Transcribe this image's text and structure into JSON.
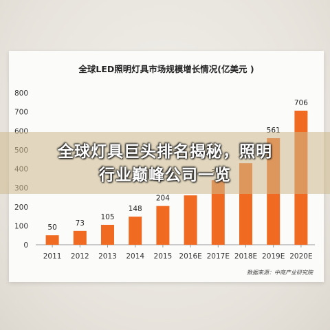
{
  "headline": {
    "line1": "全球灯具巨头排名揭秘，照明",
    "line2": "行业巅峰公司一览"
  },
  "chart_data": {
    "type": "bar",
    "title": "全球LED照明灯具市场规模增长情况(亿美元 )",
    "categories": [
      "2011",
      "2012",
      "2013",
      "2014",
      "2015",
      "2016E",
      "2017E",
      "2018E",
      "2019E",
      "2020E"
    ],
    "values": [
      50,
      73,
      105,
      148,
      204,
      260,
      340,
      430,
      561,
      706
    ],
    "data_labels": [
      "50",
      "73",
      "105",
      "148",
      "204",
      "",
      "340",
      "",
      "561",
      "706"
    ],
    "ylim": [
      0,
      800
    ],
    "yticks": [
      "0",
      "100",
      "200",
      "300",
      "400",
      "500",
      "600",
      "700",
      "800"
    ],
    "xlabel": "",
    "ylabel": "",
    "grid": false,
    "source": "数据来源：中商产业研究院",
    "colors": {
      "bar": "#f06a22",
      "axis": "#999999"
    }
  }
}
